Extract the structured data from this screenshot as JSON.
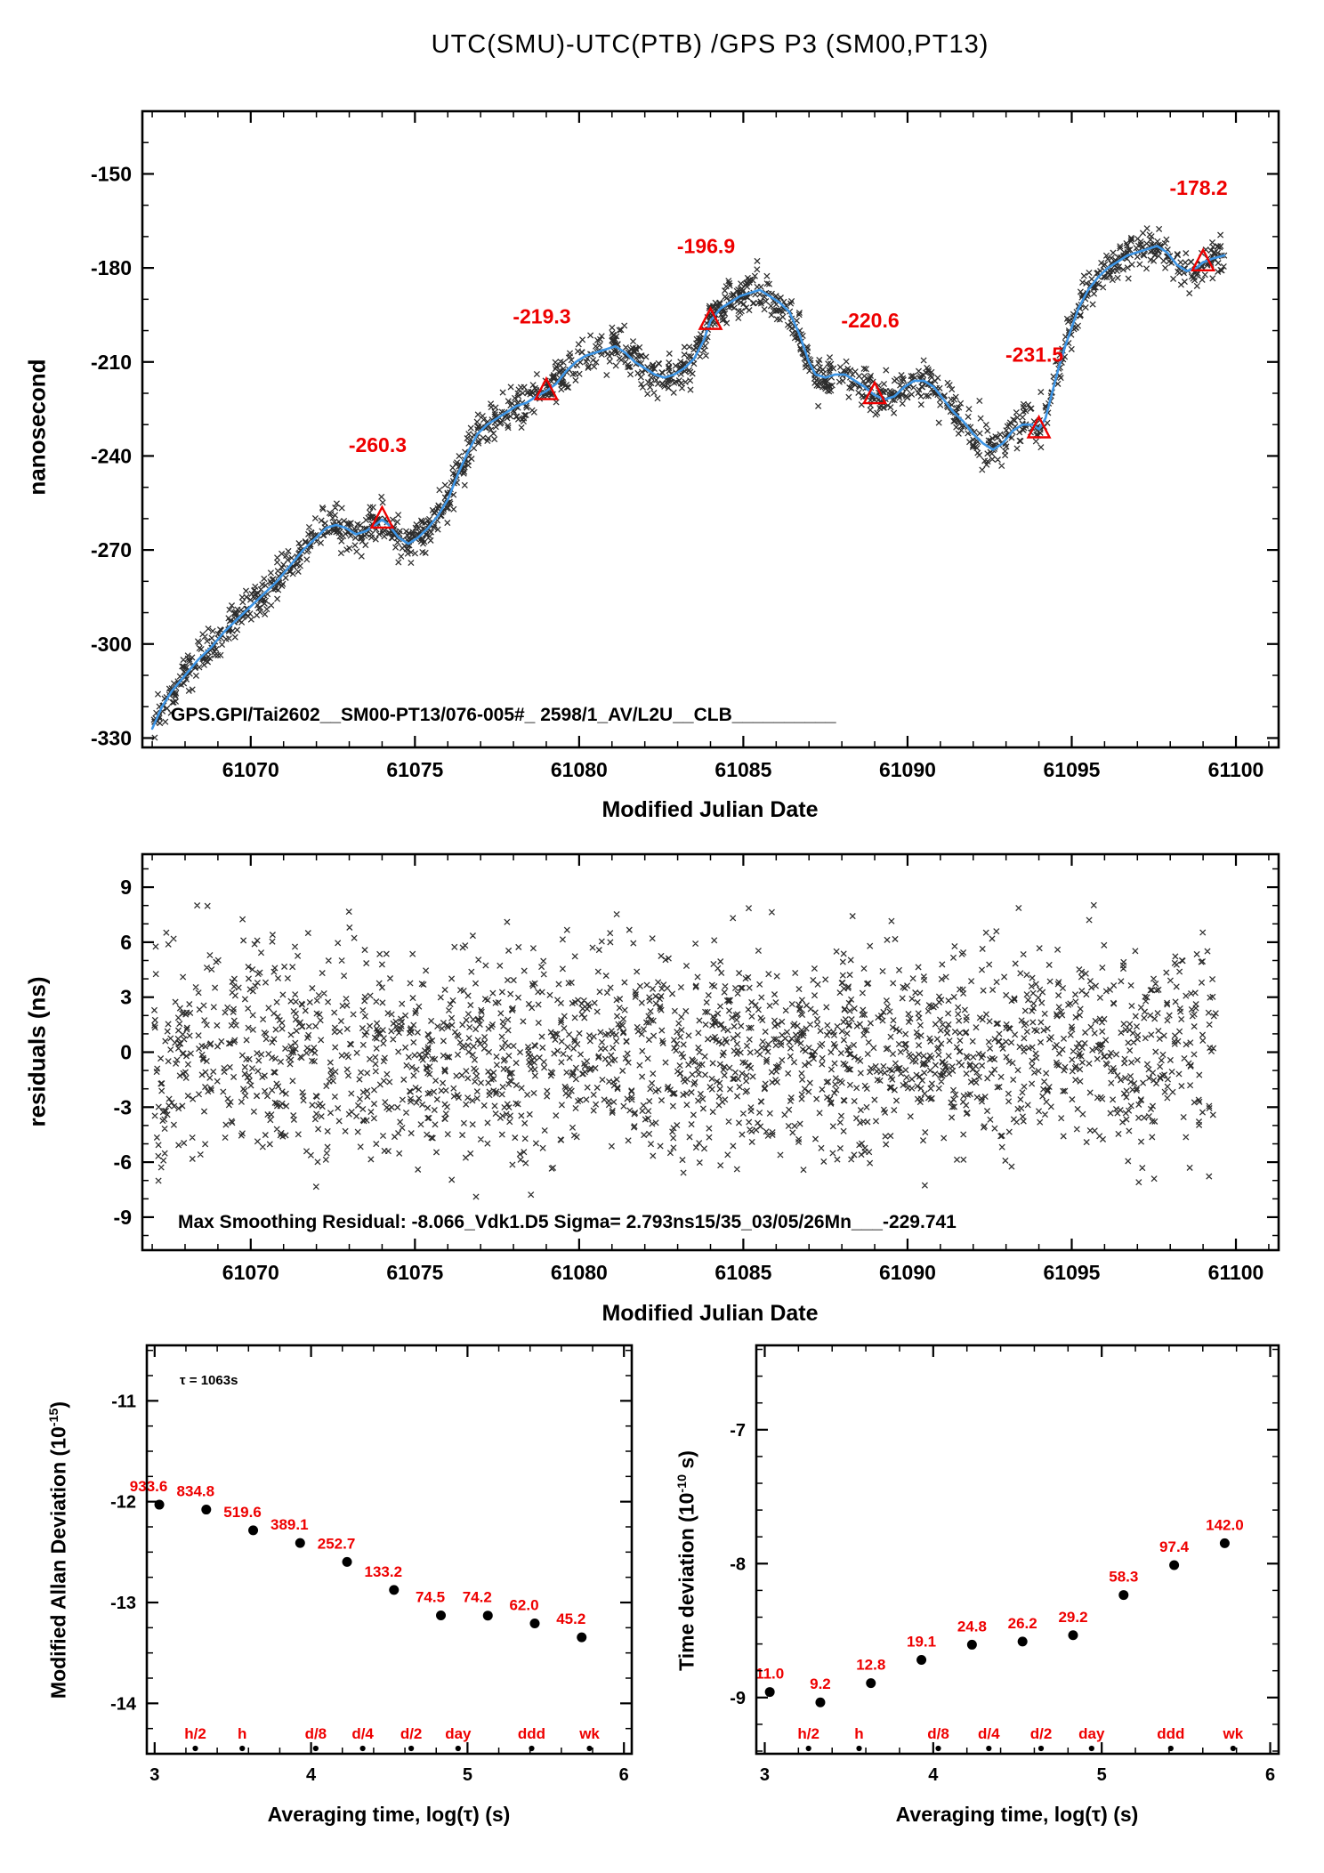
{
  "title": "UTC(SMU)-UTC(PTB)  /GPS  P3  (SM00,PT13)",
  "colors": {
    "red": "#ee0000",
    "blue": "#3d95e5",
    "scatter": "#1a1a1a",
    "frame": "#000000"
  },
  "chart_data": [
    {
      "id": "phase",
      "type": "scatter+line",
      "xlabel": "Modified Julian Date",
      "ylabel": "nanosecond",
      "xlim": [
        61066.7,
        61101.3
      ],
      "ylim": [
        -333,
        -130
      ],
      "xticks": {
        "values": [
          61070,
          61075,
          61080,
          61085,
          61090,
          61095,
          61100
        ],
        "labels": [
          "61070",
          "61075",
          "61080",
          "61085",
          "61090",
          "61095",
          "61100"
        ]
      },
      "yticks": {
        "values": [
          -330,
          -300,
          -270,
          -240,
          -210,
          -180,
          -150
        ],
        "labels": [
          "-330",
          "-300",
          "-270",
          "-240",
          "-210",
          "-180",
          "-150"
        ]
      },
      "annotation": "GPS.GPI/Tai2602__SM00-PT13/076-005#_  2598/1_AV/L2U__CLB__________",
      "markers": [
        {
          "x": 61074,
          "y": -260.3,
          "label": "-260.3"
        },
        {
          "x": 61079,
          "y": -219.3,
          "label": "-219.3"
        },
        {
          "x": 61084,
          "y": -196.9,
          "label": "-196.9"
        },
        {
          "x": 61089,
          "y": -220.6,
          "label": "-220.6"
        },
        {
          "x": 61094,
          "y": -231.5,
          "label": "-231.5"
        },
        {
          "x": 61099,
          "y": -178.2,
          "label": "-178.2"
        }
      ],
      "line": [
        [
          61067.0,
          -327
        ],
        [
          61067.3,
          -320
        ],
        [
          61067.6,
          -315
        ],
        [
          61068.0,
          -310
        ],
        [
          61068.4,
          -305
        ],
        [
          61068.8,
          -301
        ],
        [
          61069.2,
          -296
        ],
        [
          61069.6,
          -292
        ],
        [
          61070.0,
          -288
        ],
        [
          61070.4,
          -284
        ],
        [
          61070.8,
          -280
        ],
        [
          61071.2,
          -275
        ],
        [
          61071.6,
          -270
        ],
        [
          61072.0,
          -266
        ],
        [
          61072.3,
          -263
        ],
        [
          61072.6,
          -262
        ],
        [
          61072.9,
          -263
        ],
        [
          61073.2,
          -265
        ],
        [
          61073.5,
          -264
        ],
        [
          61073.8,
          -262
        ],
        [
          61074.0,
          -260.3
        ],
        [
          61074.2,
          -262
        ],
        [
          61074.5,
          -266
        ],
        [
          61074.8,
          -268
        ],
        [
          61075.1,
          -266
        ],
        [
          61075.4,
          -263
        ],
        [
          61075.7,
          -259
        ],
        [
          61076.0,
          -254
        ],
        [
          61076.3,
          -246
        ],
        [
          61076.6,
          -239
        ],
        [
          61076.9,
          -233
        ],
        [
          61077.2,
          -230
        ],
        [
          61077.5,
          -228
        ],
        [
          61077.8,
          -226
        ],
        [
          61078.1,
          -224
        ],
        [
          61078.4,
          -223
        ],
        [
          61078.7,
          -221
        ],
        [
          61079.0,
          -219.3
        ],
        [
          61079.3,
          -217
        ],
        [
          61079.6,
          -213
        ],
        [
          61079.9,
          -210
        ],
        [
          61080.2,
          -208
        ],
        [
          61080.5,
          -207
        ],
        [
          61080.8,
          -206
        ],
        [
          61081.1,
          -205
        ],
        [
          61081.4,
          -207
        ],
        [
          61081.7,
          -210
        ],
        [
          61082.0,
          -212
        ],
        [
          61082.3,
          -214
        ],
        [
          61082.6,
          -215
        ],
        [
          61082.9,
          -214
        ],
        [
          61083.2,
          -212
        ],
        [
          61083.5,
          -209
        ],
        [
          61083.8,
          -203
        ],
        [
          61084.0,
          -196.9
        ],
        [
          61084.3,
          -193
        ],
        [
          61084.6,
          -191
        ],
        [
          61084.9,
          -189
        ],
        [
          61085.2,
          -188
        ],
        [
          61085.5,
          -187
        ],
        [
          61085.8,
          -189
        ],
        [
          61086.1,
          -191
        ],
        [
          61086.4,
          -194
        ],
        [
          61086.7,
          -201
        ],
        [
          61087.0,
          -210
        ],
        [
          61087.2,
          -214
        ],
        [
          61087.5,
          -215
        ],
        [
          61087.8,
          -214
        ],
        [
          61088.1,
          -214
        ],
        [
          61088.4,
          -216
        ],
        [
          61088.7,
          -218
        ],
        [
          61089.0,
          -220.6
        ],
        [
          61089.3,
          -222
        ],
        [
          61089.6,
          -221
        ],
        [
          61089.9,
          -218
        ],
        [
          61090.2,
          -216
        ],
        [
          61090.5,
          -216
        ],
        [
          61090.8,
          -218
        ],
        [
          61091.1,
          -222
        ],
        [
          61091.4,
          -226
        ],
        [
          61091.7,
          -229
        ],
        [
          61092.0,
          -233
        ],
        [
          61092.3,
          -236
        ],
        [
          61092.6,
          -238
        ],
        [
          61092.9,
          -236
        ],
        [
          61093.2,
          -232
        ],
        [
          61093.5,
          -230
        ],
        [
          61093.8,
          -230
        ],
        [
          61094.0,
          -231.5
        ],
        [
          61094.2,
          -228
        ],
        [
          61094.4,
          -220
        ],
        [
          61094.6,
          -212
        ],
        [
          61094.8,
          -205
        ],
        [
          61095.0,
          -199
        ],
        [
          61095.2,
          -193
        ],
        [
          61095.5,
          -187
        ],
        [
          61095.8,
          -183
        ],
        [
          61096.1,
          -180
        ],
        [
          61096.4,
          -178
        ],
        [
          61096.7,
          -176
        ],
        [
          61097.0,
          -175
        ],
        [
          61097.3,
          -174
        ],
        [
          61097.6,
          -173
        ],
        [
          61097.9,
          -175
        ],
        [
          61098.2,
          -179
        ],
        [
          61098.5,
          -181
        ],
        [
          61098.8,
          -180
        ],
        [
          61099.0,
          -178.2
        ],
        [
          61099.3,
          -177
        ],
        [
          61099.65,
          -176
        ]
      ],
      "scatter": {
        "n": 1600,
        "sigma": 3.2,
        "seed": 42,
        "trange": [
          61067.0,
          61099.65
        ]
      }
    },
    {
      "id": "residuals",
      "type": "scatter",
      "xlabel": "Modified Julian Date",
      "ylabel": "residuals (ns)",
      "xlim": [
        61066.7,
        61101.3
      ],
      "ylim": [
        -10.8,
        10.8
      ],
      "xticks": {
        "values": [
          61070,
          61075,
          61080,
          61085,
          61090,
          61095,
          61100
        ],
        "labels": [
          "61070",
          "61075",
          "61080",
          "61085",
          "61090",
          "61095",
          "61100"
        ]
      },
      "yticks": {
        "values": [
          -9,
          -6,
          -3,
          0,
          3,
          6,
          9
        ],
        "labels": [
          "-9",
          "-6",
          "-3",
          "0",
          "3",
          "6",
          "9"
        ]
      },
      "annotation": "Max Smoothing Residual: -8.066_Vdk1.D5  Sigma= 2.793ns15/35_03/05/26Mn___-229.741",
      "scatter": {
        "n": 2100,
        "sigma": 2.793,
        "seed": 7,
        "clip": 8.2,
        "trange": [
          61067.05,
          61099.4
        ]
      }
    },
    {
      "id": "mdev",
      "type": "scatter",
      "xlabel": "Averaging time, log(τ) (s)",
      "ylabel_prefix": "Modified Allan Deviation (10",
      "ylabel_exp": "-15",
      "ylabel_suffix": ")",
      "exponent": -15,
      "note": "τ = 1063s",
      "xlim": [
        2.95,
        6.05
      ],
      "ylim": [
        -14.5,
        -10.45
      ],
      "xticks": {
        "values": [
          3,
          4,
          5,
          6
        ],
        "labels": [
          "3",
          "4",
          "5",
          "6"
        ]
      },
      "yticks": {
        "values": [
          -11,
          -12,
          -13,
          -14
        ],
        "labels": [
          "-11",
          "-12",
          "-13",
          "-14"
        ]
      },
      "label_dx": -12,
      "points": [
        {
          "logtau": 3.03,
          "value": 933.6,
          "label": "933.6"
        },
        {
          "logtau": 3.33,
          "value": 834.8,
          "label": "834.8"
        },
        {
          "logtau": 3.63,
          "value": 519.6,
          "label": "519.6"
        },
        {
          "logtau": 3.93,
          "value": 389.1,
          "label": "389.1"
        },
        {
          "logtau": 4.23,
          "value": 252.7,
          "label": "252.7"
        },
        {
          "logtau": 4.53,
          "value": 133.2,
          "label": "133.2"
        },
        {
          "logtau": 4.83,
          "value": 74.5,
          "label": "74.5"
        },
        {
          "logtau": 5.13,
          "value": 74.2,
          "label": "74.2"
        },
        {
          "logtau": 5.43,
          "value": 62.0,
          "label": "62.0"
        },
        {
          "logtau": 5.73,
          "value": 45.2,
          "label": "45.2"
        }
      ],
      "unit_labels": [
        {
          "x": 3.26,
          "label": "h/2"
        },
        {
          "x": 3.56,
          "label": "h"
        },
        {
          "x": 4.03,
          "label": "d/8"
        },
        {
          "x": 4.33,
          "label": "d/4"
        },
        {
          "x": 4.64,
          "label": "d/2"
        },
        {
          "x": 4.94,
          "label": "day"
        },
        {
          "x": 5.41,
          "label": "ddd"
        },
        {
          "x": 5.78,
          "label": "wk"
        }
      ]
    },
    {
      "id": "tdev",
      "type": "scatter",
      "xlabel": "Averaging time, log(τ) (s)",
      "ylabel_prefix": "Time deviation (10",
      "ylabel_exp": "-10",
      "ylabel_suffix": " s)",
      "exponent": -10,
      "xlim": [
        2.95,
        6.05
      ],
      "ylim": [
        -9.42,
        -6.37
      ],
      "xticks": {
        "values": [
          3,
          4,
          5,
          6
        ],
        "labels": [
          "3",
          "4",
          "5",
          "6"
        ]
      },
      "yticks": {
        "values": [
          -7,
          -8,
          -9
        ],
        "labels": [
          "-7",
          "-8",
          "-9"
        ]
      },
      "label_dx": 0,
      "points": [
        {
          "logtau": 3.03,
          "value": 11.0,
          "label": "11.0"
        },
        {
          "logtau": 3.33,
          "value": 9.2,
          "label": "9.2"
        },
        {
          "logtau": 3.63,
          "value": 12.8,
          "label": "12.8"
        },
        {
          "logtau": 3.93,
          "value": 19.1,
          "label": "19.1"
        },
        {
          "logtau": 4.23,
          "value": 24.8,
          "label": "24.8"
        },
        {
          "logtau": 4.53,
          "value": 26.2,
          "label": "26.2"
        },
        {
          "logtau": 4.83,
          "value": 29.2,
          "label": "29.2"
        },
        {
          "logtau": 5.13,
          "value": 58.3,
          "label": "58.3"
        },
        {
          "logtau": 5.43,
          "value": 97.4,
          "label": "97.4"
        },
        {
          "logtau": 5.73,
          "value": 142.0,
          "label": "142.0"
        }
      ],
      "unit_labels": [
        {
          "x": 3.26,
          "label": "h/2"
        },
        {
          "x": 3.56,
          "label": "h"
        },
        {
          "x": 4.03,
          "label": "d/8"
        },
        {
          "x": 4.33,
          "label": "d/4"
        },
        {
          "x": 4.64,
          "label": "d/2"
        },
        {
          "x": 4.94,
          "label": "day"
        },
        {
          "x": 5.41,
          "label": "ddd"
        },
        {
          "x": 5.78,
          "label": "wk"
        }
      ]
    }
  ]
}
